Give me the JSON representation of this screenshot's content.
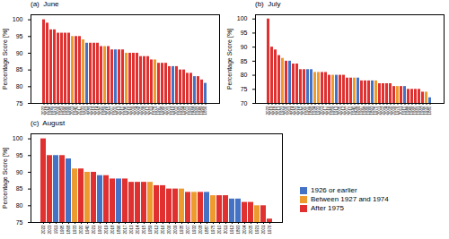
{
  "chart_data": [
    {
      "type": "bar",
      "title": "(a)  June",
      "ylabel": "Percentage Score [%]",
      "categories": [
        "2022",
        "2018",
        "1995",
        "1976",
        "2006",
        "1983",
        "1996",
        "1999",
        "2003",
        "1940",
        "2017",
        "1933",
        "1911",
        "2021",
        "2019",
        "2014",
        "2020",
        "1959",
        "2015",
        "2007",
        "1900",
        "2013",
        "2010",
        "1935",
        "2016",
        "2009",
        "2004",
        "2005",
        "2008",
        "2012",
        "2011",
        "1975",
        "1997",
        "1998",
        "2000",
        "2001",
        "1919",
        "2002",
        "1993",
        "1994",
        "2003",
        "1991",
        "1868",
        "1992",
        "1989",
        "1856"
      ],
      "series": [
        {
          "name": "1926 or earlier",
          "color": "#4472C4",
          "values": [
            null,
            null,
            null,
            null,
            null,
            null,
            null,
            null,
            null,
            null,
            null,
            null,
            93,
            null,
            null,
            null,
            null,
            null,
            null,
            null,
            91,
            null,
            null,
            null,
            null,
            null,
            null,
            null,
            null,
            null,
            null,
            null,
            null,
            null,
            null,
            null,
            86,
            null,
            null,
            null,
            null,
            null,
            83,
            null,
            null,
            81
          ]
        },
        {
          "name": "Between 1927 and 1974",
          "color": "#ED9B2F",
          "values": [
            null,
            null,
            null,
            null,
            null,
            null,
            null,
            null,
            95,
            null,
            null,
            94,
            null,
            null,
            null,
            null,
            null,
            92,
            null,
            null,
            null,
            null,
            null,
            90,
            null,
            null,
            null,
            null,
            null,
            null,
            null,
            88,
            null,
            null,
            null,
            null,
            null,
            null,
            null,
            null,
            null,
            null,
            null,
            null,
            null,
            null
          ]
        },
        {
          "name": "After 1975",
          "color": "#E03030",
          "values": [
            100,
            99,
            97,
            97,
            96,
            96,
            96,
            96,
            null,
            95,
            95,
            null,
            null,
            93,
            93,
            93,
            92,
            null,
            92,
            91,
            null,
            91,
            91,
            null,
            90,
            90,
            90,
            89,
            89,
            89,
            88,
            null,
            87,
            87,
            87,
            86,
            null,
            86,
            85,
            85,
            84,
            84,
            null,
            83,
            82,
            null
          ]
        }
      ],
      "ylim": [
        75,
        101.5
      ],
      "yticks": [
        75,
        80,
        85,
        90,
        95,
        100
      ]
    },
    {
      "type": "bar",
      "title": "(b)  July",
      "ylabel": "Percentage Score [%]",
      "categories": [
        "2022",
        "2019",
        "2018",
        "2013",
        "1921",
        "2006",
        "1911",
        "2014",
        "2021",
        "2015",
        "2020",
        "1900",
        "1868",
        "1934",
        "1933",
        "2003",
        "2017",
        "2016",
        "1959",
        "1913",
        "2005",
        "2012",
        "2007",
        "2010",
        "1940",
        "1868",
        "1997",
        "1998",
        "1999",
        "1893",
        "1975",
        "2001",
        "2002",
        "2004",
        "2008",
        "2009",
        "1976",
        "2011",
        "1910",
        "1988",
        "1989",
        "1990",
        "1991",
        "1992",
        "1930",
        "1880"
      ],
      "series": [
        {
          "name": "1926 or earlier",
          "color": "#4472C4",
          "values": [
            null,
            null,
            null,
            null,
            null,
            null,
            85,
            null,
            null,
            null,
            null,
            82,
            82,
            null,
            null,
            null,
            null,
            null,
            null,
            80,
            null,
            null,
            null,
            null,
            null,
            79,
            null,
            null,
            null,
            78,
            null,
            null,
            null,
            null,
            null,
            null,
            null,
            null,
            76,
            null,
            null,
            null,
            null,
            null,
            null,
            72
          ]
        },
        {
          "name": "Between 1927 and 1974",
          "color": "#ED9B2F",
          "values": [
            null,
            null,
            null,
            null,
            86,
            null,
            null,
            null,
            null,
            null,
            null,
            null,
            null,
            81,
            81,
            null,
            null,
            null,
            80,
            null,
            null,
            null,
            null,
            null,
            79,
            null,
            null,
            null,
            null,
            null,
            78,
            null,
            null,
            null,
            null,
            null,
            76,
            null,
            null,
            null,
            null,
            null,
            null,
            null,
            74,
            null
          ]
        },
        {
          "name": "After 1975",
          "color": "#E03030",
          "values": [
            100,
            90,
            89,
            87,
            null,
            85,
            null,
            84,
            84,
            82,
            82,
            null,
            null,
            null,
            null,
            81,
            81,
            80,
            null,
            null,
            80,
            80,
            79,
            79,
            null,
            null,
            78,
            78,
            78,
            null,
            null,
            77,
            77,
            77,
            77,
            76,
            null,
            76,
            null,
            75,
            75,
            75,
            75,
            74,
            null,
            null
          ]
        }
      ],
      "ylim": [
        70,
        101.5
      ],
      "yticks": [
        70,
        75,
        80,
        85,
        90,
        95,
        100
      ]
    },
    {
      "type": "bar",
      "title": "(c)  August",
      "ylabel": "Percentage Score [%]",
      "categories": [
        "2022",
        "2003",
        "1911",
        "1995",
        "1868",
        "1933",
        "2020",
        "1940",
        "2021",
        "1900",
        "2019",
        "2018",
        "1896",
        "2017",
        "2013",
        "2014",
        "2015",
        "1959",
        "2012",
        "2016",
        "2006",
        "2009",
        "1935",
        "2007",
        "1932",
        "2008",
        "1887",
        "1975",
        "2010",
        "2011",
        "1912",
        "1893",
        "2004",
        "2005",
        "1921",
        "2001",
        "1976"
      ],
      "series": [
        {
          "name": "1926 or earlier",
          "color": "#4472C4",
          "values": [
            null,
            null,
            95,
            null,
            94,
            null,
            null,
            null,
            null,
            89,
            null,
            null,
            88,
            null,
            null,
            null,
            null,
            null,
            null,
            null,
            null,
            null,
            null,
            null,
            null,
            null,
            84,
            null,
            null,
            null,
            82,
            82,
            null,
            null,
            null,
            null,
            null
          ]
        },
        {
          "name": "Between 1927 and 1974",
          "color": "#ED9B2F",
          "values": [
            null,
            null,
            null,
            null,
            null,
            91,
            null,
            90,
            null,
            null,
            null,
            null,
            null,
            null,
            null,
            null,
            null,
            87,
            null,
            null,
            null,
            null,
            85,
            null,
            84,
            null,
            null,
            83,
            null,
            null,
            null,
            null,
            null,
            null,
            80,
            null,
            null
          ]
        },
        {
          "name": "After 1975",
          "color": "#E03030",
          "values": [
            100,
            95,
            null,
            95,
            null,
            null,
            91,
            null,
            90,
            null,
            89,
            88,
            null,
            88,
            87,
            87,
            87,
            null,
            86,
            86,
            85,
            85,
            null,
            84,
            null,
            84,
            null,
            null,
            83,
            83,
            null,
            null,
            81,
            81,
            null,
            80,
            76
          ]
        }
      ],
      "ylim": [
        75,
        101.5
      ],
      "yticks": [
        75,
        80,
        85,
        90,
        95,
        100
      ],
      "legend": "lower right"
    }
  ]
}
